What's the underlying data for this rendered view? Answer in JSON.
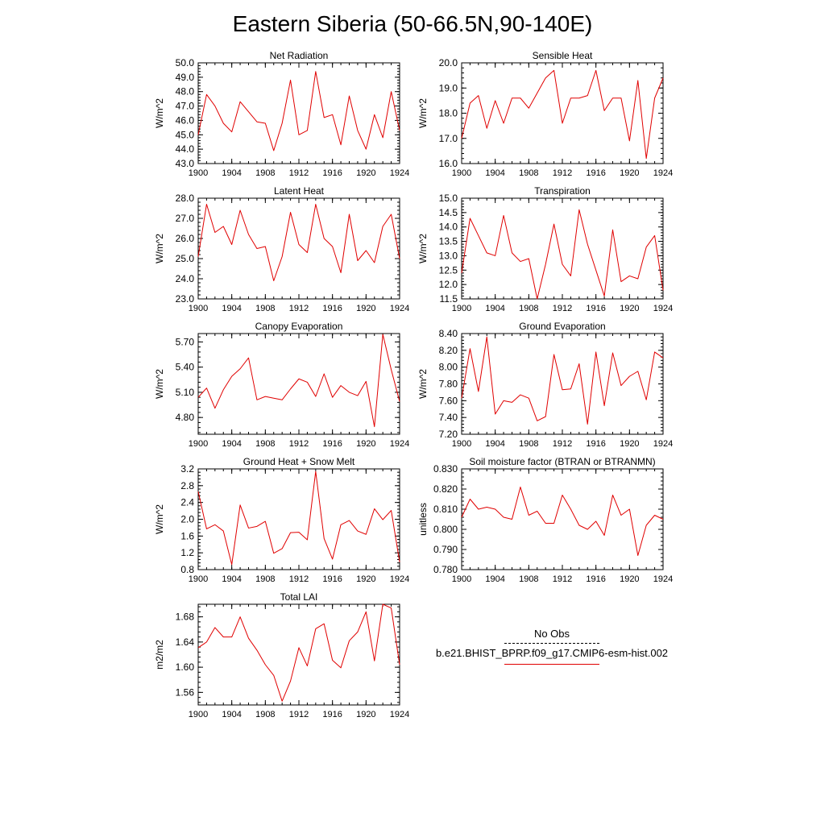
{
  "title": "Eastern Siberia (50-66.5N,90-140E)",
  "colors": {
    "series": "#e00000",
    "axis": "#000000",
    "obs": "#000000"
  },
  "legend": {
    "obs_label": "No Obs",
    "model_label": "b.e21.BHIST_BPRP.f09_g17.CMIP6-esm-hist.002"
  },
  "chart_data": [
    {
      "type": "line",
      "title": "Net Radiation",
      "ylabel": "W/m^2",
      "xlim": [
        1900,
        1924
      ],
      "ylim": [
        43.0,
        50.0
      ],
      "xticks": [
        1900,
        1904,
        1908,
        1912,
        1916,
        1920,
        1924
      ],
      "xtick_labels": [
        "1900",
        "1904",
        "1908",
        "1912",
        "1916",
        "1920",
        "1924"
      ],
      "yticks": [
        43.0,
        44.0,
        45.0,
        46.0,
        47.0,
        48.0,
        49.0,
        50.0
      ],
      "ytick_labels": [
        "43.0",
        "44.0",
        "45.0",
        "46.0",
        "47.0",
        "48.0",
        "49.0",
        "50.0"
      ],
      "x": [
        1900,
        1901,
        1902,
        1903,
        1904,
        1905,
        1906,
        1907,
        1908,
        1909,
        1910,
        1911,
        1912,
        1913,
        1914,
        1915,
        1916,
        1917,
        1918,
        1919,
        1920,
        1921,
        1922,
        1923,
        1924
      ],
      "series": [
        {
          "name": "b.e21.BHIST_BPRP.f09_g17.CMIP6-esm-hist.002",
          "values": [
            45.0,
            47.8,
            47.0,
            45.8,
            45.2,
            47.3,
            46.6,
            45.9,
            45.8,
            43.9,
            45.8,
            48.8,
            45.0,
            45.3,
            49.4,
            46.2,
            46.4,
            44.3,
            47.7,
            45.3,
            44.0,
            46.4,
            44.8,
            48.0,
            45.3
          ]
        }
      ]
    },
    {
      "type": "line",
      "title": "Sensible Heat",
      "ylabel": "W/m^2",
      "xlim": [
        1900,
        1924
      ],
      "ylim": [
        16.0,
        20.0
      ],
      "xticks": [
        1900,
        1904,
        1908,
        1912,
        1916,
        1920,
        1924
      ],
      "xtick_labels": [
        "1900",
        "1904",
        "1908",
        "1912",
        "1916",
        "1920",
        "1924"
      ],
      "yticks": [
        16.0,
        17.0,
        18.0,
        19.0,
        20.0
      ],
      "ytick_labels": [
        "16.0",
        "17.0",
        "18.0",
        "19.0",
        "20.0"
      ],
      "x": [
        1900,
        1901,
        1902,
        1903,
        1904,
        1905,
        1906,
        1907,
        1908,
        1909,
        1910,
        1911,
        1912,
        1913,
        1914,
        1915,
        1916,
        1917,
        1918,
        1919,
        1920,
        1921,
        1922,
        1923,
        1924
      ],
      "series": [
        {
          "name": "b.e21.BHIST_BPRP.f09_g17.CMIP6-esm-hist.002",
          "values": [
            17.0,
            18.4,
            18.7,
            17.4,
            18.5,
            17.6,
            18.6,
            18.6,
            18.2,
            18.8,
            19.4,
            19.7,
            17.6,
            18.6,
            18.6,
            18.7,
            19.7,
            18.1,
            18.6,
            18.6,
            16.9,
            19.3,
            16.2,
            18.6,
            19.4
          ]
        }
      ]
    },
    {
      "type": "line",
      "title": "Latent Heat",
      "ylabel": "W/m^2",
      "xlim": [
        1900,
        1924
      ],
      "ylim": [
        23.0,
        28.0
      ],
      "xticks": [
        1900,
        1904,
        1908,
        1912,
        1916,
        1920,
        1924
      ],
      "xtick_labels": [
        "1900",
        "1904",
        "1908",
        "1912",
        "1916",
        "1920",
        "1924"
      ],
      "yticks": [
        23.0,
        24.0,
        25.0,
        26.0,
        27.0,
        28.0
      ],
      "ytick_labels": [
        "23.0",
        "24.0",
        "25.0",
        "26.0",
        "27.0",
        "28.0"
      ],
      "x": [
        1900,
        1901,
        1902,
        1903,
        1904,
        1905,
        1906,
        1907,
        1908,
        1909,
        1910,
        1911,
        1912,
        1913,
        1914,
        1915,
        1916,
        1917,
        1918,
        1919,
        1920,
        1921,
        1922,
        1923,
        1924
      ],
      "series": [
        {
          "name": "b.e21.BHIST_BPRP.f09_g17.CMIP6-esm-hist.002",
          "values": [
            25.1,
            27.7,
            26.3,
            26.6,
            25.7,
            27.4,
            26.2,
            25.5,
            25.6,
            23.9,
            25.1,
            27.3,
            25.7,
            25.3,
            27.7,
            26.0,
            25.6,
            24.3,
            27.2,
            24.9,
            25.4,
            24.8,
            26.6,
            27.2,
            25.0
          ]
        }
      ]
    },
    {
      "type": "line",
      "title": "Transpiration",
      "ylabel": "W/m^2",
      "xlim": [
        1900,
        1924
      ],
      "ylim": [
        11.5,
        15.0
      ],
      "xticks": [
        1900,
        1904,
        1908,
        1912,
        1916,
        1920,
        1924
      ],
      "xtick_labels": [
        "1900",
        "1904",
        "1908",
        "1912",
        "1916",
        "1920",
        "1924"
      ],
      "yticks": [
        11.5,
        12.0,
        12.5,
        13.0,
        13.5,
        14.0,
        14.5,
        15.0
      ],
      "ytick_labels": [
        "11.5",
        "12.0",
        "12.5",
        "13.0",
        "13.5",
        "14.0",
        "14.5",
        "15.0"
      ],
      "x": [
        1900,
        1901,
        1902,
        1903,
        1904,
        1905,
        1906,
        1907,
        1908,
        1909,
        1910,
        1911,
        1912,
        1913,
        1914,
        1915,
        1916,
        1917,
        1918,
        1919,
        1920,
        1921,
        1922,
        1923,
        1924
      ],
      "series": [
        {
          "name": "b.e21.BHIST_BPRP.f09_g17.CMIP6-esm-hist.002",
          "values": [
            12.4,
            14.3,
            13.7,
            13.1,
            13.0,
            14.4,
            13.1,
            12.8,
            12.9,
            11.5,
            12.7,
            14.1,
            12.7,
            12.3,
            14.6,
            13.4,
            12.5,
            11.6,
            13.9,
            12.1,
            12.3,
            12.2,
            13.3,
            13.7,
            11.8
          ]
        }
      ]
    },
    {
      "type": "line",
      "title": "Canopy Evaporation",
      "ylabel": "W/m^2",
      "xlim": [
        1900,
        1924
      ],
      "ylim": [
        4.6,
        5.8
      ],
      "xticks": [
        1900,
        1904,
        1908,
        1912,
        1916,
        1920,
        1924
      ],
      "xtick_labels": [
        "1900",
        "1904",
        "1908",
        "1912",
        "1916",
        "1920",
        "1924"
      ],
      "yticks": [
        4.8,
        5.1,
        5.4,
        5.7
      ],
      "ytick_labels": [
        "4.80",
        "5.10",
        "5.40",
        "5.70"
      ],
      "x": [
        1900,
        1901,
        1902,
        1903,
        1904,
        1905,
        1906,
        1907,
        1908,
        1909,
        1910,
        1911,
        1912,
        1913,
        1914,
        1915,
        1916,
        1917,
        1918,
        1919,
        1920,
        1921,
        1922,
        1923,
        1924
      ],
      "series": [
        {
          "name": "b.e21.BHIST_BPRP.f09_g17.CMIP6-esm-hist.002",
          "values": [
            5.04,
            5.15,
            4.91,
            5.13,
            5.29,
            5.38,
            5.51,
            5.01,
            5.05,
            5.03,
            5.01,
            5.14,
            5.26,
            5.22,
            5.05,
            5.32,
            5.04,
            5.18,
            5.1,
            5.06,
            5.23,
            4.69,
            5.79,
            5.37,
            4.99
          ]
        }
      ]
    },
    {
      "type": "line",
      "title": "Ground Evaporation",
      "ylabel": "W/m^2",
      "xlim": [
        1900,
        1924
      ],
      "ylim": [
        7.2,
        8.4
      ],
      "xticks": [
        1900,
        1904,
        1908,
        1912,
        1916,
        1920,
        1924
      ],
      "xtick_labels": [
        "1900",
        "1904",
        "1908",
        "1912",
        "1916",
        "1920",
        "1924"
      ],
      "yticks": [
        7.2,
        7.4,
        7.6,
        7.8,
        8.0,
        8.2,
        8.4
      ],
      "ytick_labels": [
        "7.20",
        "7.40",
        "7.60",
        "7.80",
        "8.00",
        "8.20",
        "8.40"
      ],
      "x": [
        1900,
        1901,
        1902,
        1903,
        1904,
        1905,
        1906,
        1907,
        1908,
        1909,
        1910,
        1911,
        1912,
        1913,
        1914,
        1915,
        1916,
        1917,
        1918,
        1919,
        1920,
        1921,
        1922,
        1923,
        1924
      ],
      "series": [
        {
          "name": "b.e21.BHIST_BPRP.f09_g17.CMIP6-esm-hist.002",
          "values": [
            7.63,
            8.22,
            7.71,
            8.36,
            7.44,
            7.6,
            7.58,
            7.67,
            7.63,
            7.36,
            7.41,
            8.15,
            7.73,
            7.74,
            8.04,
            7.32,
            8.18,
            7.54,
            8.17,
            7.78,
            7.89,
            7.95,
            7.61,
            8.18,
            8.11
          ]
        }
      ]
    },
    {
      "type": "line",
      "title": "Ground Heat + Snow Melt",
      "ylabel": "W/m^2",
      "xlim": [
        1900,
        1924
      ],
      "ylim": [
        0.8,
        3.2
      ],
      "xticks": [
        1900,
        1904,
        1908,
        1912,
        1916,
        1920,
        1924
      ],
      "xtick_labels": [
        "1900",
        "1904",
        "1908",
        "1912",
        "1916",
        "1920",
        "1924"
      ],
      "yticks": [
        0.8,
        1.2,
        1.6,
        2.0,
        2.4,
        2.8,
        3.2
      ],
      "ytick_labels": [
        "0.8",
        "1.2",
        "1.6",
        "2.0",
        "2.4",
        "2.8",
        "3.2"
      ],
      "x": [
        1900,
        1901,
        1902,
        1903,
        1904,
        1905,
        1906,
        1907,
        1908,
        1909,
        1910,
        1911,
        1912,
        1913,
        1914,
        1915,
        1916,
        1917,
        1918,
        1919,
        1920,
        1921,
        1922,
        1923,
        1924
      ],
      "series": [
        {
          "name": "b.e21.BHIST_BPRP.f09_g17.CMIP6-esm-hist.002",
          "values": [
            2.66,
            1.77,
            1.87,
            1.72,
            0.92,
            2.34,
            1.79,
            1.83,
            1.95,
            1.19,
            1.3,
            1.68,
            1.69,
            1.51,
            3.14,
            1.54,
            1.05,
            1.87,
            1.97,
            1.72,
            1.64,
            2.25,
            1.99,
            2.21,
            0.98
          ]
        }
      ]
    },
    {
      "type": "line",
      "title": "Soil moisture factor (BTRAN or BTRANMN)",
      "ylabel": "unitless",
      "xlim": [
        1900,
        1924
      ],
      "ylim": [
        0.78,
        0.83
      ],
      "xticks": [
        1900,
        1904,
        1908,
        1912,
        1916,
        1920,
        1924
      ],
      "xtick_labels": [
        "1900",
        "1904",
        "1908",
        "1912",
        "1916",
        "1920",
        "1924"
      ],
      "yticks": [
        0.78,
        0.79,
        0.8,
        0.81,
        0.82,
        0.83
      ],
      "ytick_labels": [
        "0.780",
        "0.790",
        "0.800",
        "0.810",
        "0.820",
        "0.830"
      ],
      "x": [
        1900,
        1901,
        1902,
        1903,
        1904,
        1905,
        1906,
        1907,
        1908,
        1909,
        1910,
        1911,
        1912,
        1913,
        1914,
        1915,
        1916,
        1917,
        1918,
        1919,
        1920,
        1921,
        1922,
        1923,
        1924
      ],
      "series": [
        {
          "name": "b.e21.BHIST_BPRP.f09_g17.CMIP6-esm-hist.002",
          "values": [
            0.806,
            0.815,
            0.81,
            0.811,
            0.81,
            0.806,
            0.805,
            0.821,
            0.807,
            0.809,
            0.803,
            0.803,
            0.817,
            0.81,
            0.802,
            0.8,
            0.804,
            0.797,
            0.817,
            0.807,
            0.81,
            0.787,
            0.802,
            0.807,
            0.805
          ]
        }
      ]
    },
    {
      "type": "line",
      "title": "Total LAI",
      "ylabel": "m2/m2",
      "xlim": [
        1900,
        1924
      ],
      "ylim": [
        1.54,
        1.7
      ],
      "xticks": [
        1900,
        1904,
        1908,
        1912,
        1916,
        1920,
        1924
      ],
      "xtick_labels": [
        "1900",
        "1904",
        "1908",
        "1912",
        "1916",
        "1920",
        "1924"
      ],
      "yticks": [
        1.56,
        1.6,
        1.64,
        1.68
      ],
      "ytick_labels": [
        "1.56",
        "1.60",
        "1.64",
        "1.68"
      ],
      "x": [
        1900,
        1901,
        1902,
        1903,
        1904,
        1905,
        1906,
        1907,
        1908,
        1909,
        1910,
        1911,
        1912,
        1913,
        1914,
        1915,
        1916,
        1917,
        1918,
        1919,
        1920,
        1921,
        1922,
        1923,
        1924
      ],
      "series": [
        {
          "name": "b.e21.BHIST_BPRP.f09_g17.CMIP6-esm-hist.002",
          "values": [
            1.631,
            1.64,
            1.663,
            1.648,
            1.648,
            1.68,
            1.646,
            1.627,
            1.604,
            1.587,
            1.546,
            1.578,
            1.631,
            1.602,
            1.661,
            1.669,
            1.611,
            1.599,
            1.642,
            1.656,
            1.688,
            1.61,
            1.7,
            1.694,
            1.604
          ]
        }
      ]
    }
  ]
}
